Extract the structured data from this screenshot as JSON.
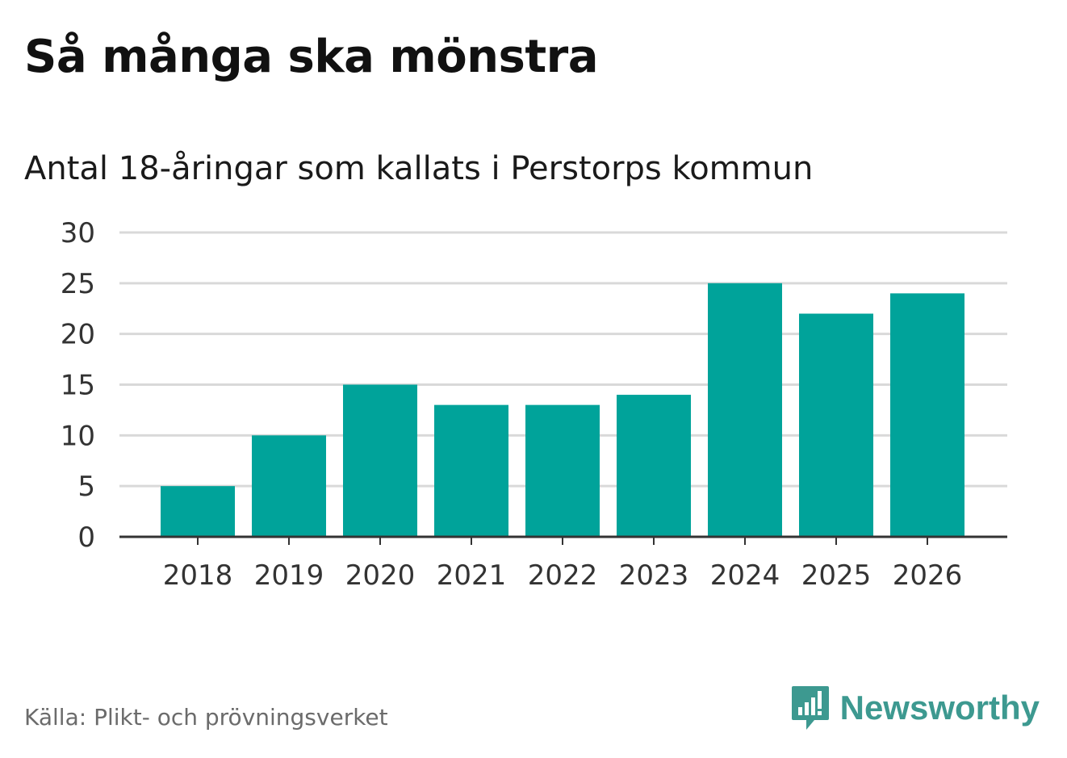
{
  "header": {
    "title": "Så många ska mönstra",
    "subtitle": "Antal 18-åringar som kallats i Perstorps kommun"
  },
  "footer": {
    "source": "Källa: Plikt- och prövningsverket",
    "brand_name": "Newsworthy",
    "brand_icon": "newsworthy-logo-icon"
  },
  "colors": {
    "bar": "#00a39a",
    "grid": "#d9d9d9",
    "axis": "#333333",
    "brand": "#3d9990"
  },
  "chart_data": {
    "type": "bar",
    "title": "Så många ska mönstra",
    "subtitle": "Antal 18-åringar som kallats i Perstorps kommun",
    "categories": [
      "2018",
      "2019",
      "2020",
      "2021",
      "2022",
      "2023",
      "2024",
      "2025",
      "2026"
    ],
    "values": [
      5,
      10,
      15,
      13,
      13,
      14,
      25,
      22,
      24
    ],
    "xlabel": "",
    "ylabel": "",
    "ylim": [
      0,
      30
    ],
    "yticks": [
      0,
      5,
      10,
      15,
      20,
      25,
      30
    ],
    "grid": true,
    "legend": "none"
  }
}
